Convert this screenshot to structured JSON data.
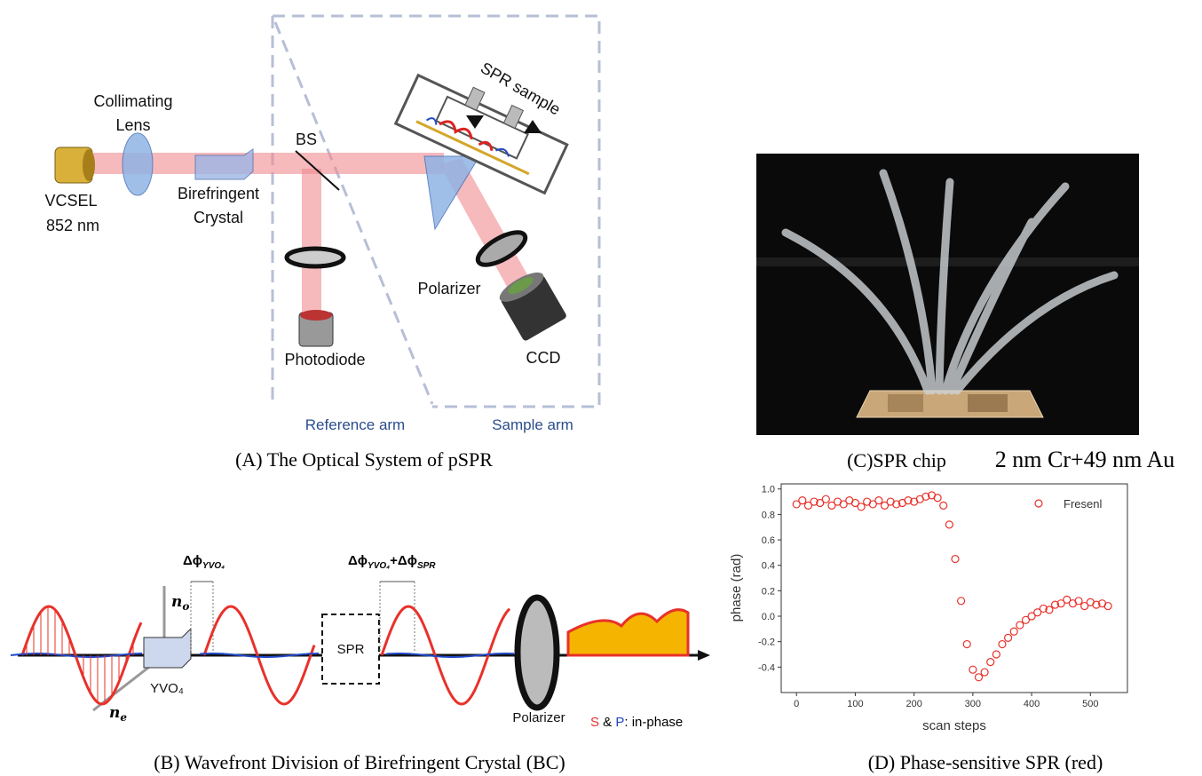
{
  "panel_a": {
    "caption": "(A) The Optical System of pSPR",
    "collimating_lens": [
      "Collimating",
      "Lens"
    ],
    "vcsel": "VCSEL",
    "wavelength": "852 nm",
    "birefringent_crystal": [
      "Birefringent",
      "Crystal"
    ],
    "beam_splitter": "BS",
    "spr_sample": "SPR sample",
    "polarizer": "Polarizer",
    "ccd": "CCD",
    "photodiode": "Photodiode",
    "reference_arm": "Reference arm",
    "sample_arm": "Sample arm"
  },
  "panel_b": {
    "caption": "(B) Wavefront Division of Birefringent Crystal (BC)",
    "delta_1": {
      "symbol": "Δϕ",
      "sub": "YVO₄"
    },
    "delta_2": {
      "symbol": "Δϕ",
      "sub": "YVO₄",
      "plus": "+Δϕ",
      "sub2": "SPR"
    },
    "n_o": "n",
    "n_o_sub": "o",
    "n_e": "n",
    "n_e_sub": "e",
    "crystal": "YVO₄",
    "spr": "SPR",
    "polarizer": "Polarizer",
    "note": {
      "s": "S",
      "amp": " & ",
      "p": "P",
      "rest": ": in-phase"
    }
  },
  "panel_c": {
    "caption": "(C)SPR chip",
    "layers": "2 nm Cr+49 nm Au"
  },
  "panel_d": {
    "caption": "(D) Phase-sensitive SPR (red)"
  },
  "chart_data": {
    "type": "scatter",
    "x_label": "scan steps",
    "y_label": "phase (rad)",
    "series": [
      {
        "name": "Fresenl",
        "color": "#e8312a",
        "x": [
          0,
          10,
          20,
          30,
          40,
          50,
          60,
          70,
          80,
          90,
          100,
          110,
          120,
          130,
          140,
          150,
          160,
          170,
          180,
          190,
          200,
          210,
          220,
          230,
          240,
          250,
          260,
          270,
          280,
          290,
          300,
          310,
          320,
          330,
          340,
          350,
          360,
          370,
          380,
          390,
          400,
          410,
          420,
          430,
          440,
          450,
          460,
          470,
          480,
          490,
          500,
          510,
          520,
          530
        ],
        "values": [
          0.88,
          0.91,
          0.87,
          0.9,
          0.89,
          0.92,
          0.87,
          0.9,
          0.88,
          0.91,
          0.89,
          0.86,
          0.9,
          0.88,
          0.91,
          0.87,
          0.9,
          0.88,
          0.89,
          0.91,
          0.9,
          0.92,
          0.94,
          0.95,
          0.93,
          0.87,
          0.72,
          0.45,
          0.12,
          -0.22,
          -0.42,
          -0.48,
          -0.44,
          -0.36,
          -0.3,
          -0.22,
          -0.17,
          -0.12,
          -0.07,
          -0.03,
          0.0,
          0.03,
          0.06,
          0.05,
          0.09,
          0.1,
          0.13,
          0.1,
          0.12,
          0.08,
          0.11,
          0.09,
          0.1,
          0.08
        ]
      }
    ],
    "xlim": [
      -26,
      563
    ],
    "ylim": [
      -0.6,
      1.04
    ],
    "xticks": [
      0,
      100,
      200,
      300,
      400,
      500
    ],
    "yticks": [
      -0.4,
      -0.2,
      {
        "value": 0,
        "label": "0.0"
      },
      0.2,
      0.4,
      0.6,
      0.8,
      {
        "value": 1,
        "label": "1.0"
      }
    ],
    "legend": "upper right"
  }
}
